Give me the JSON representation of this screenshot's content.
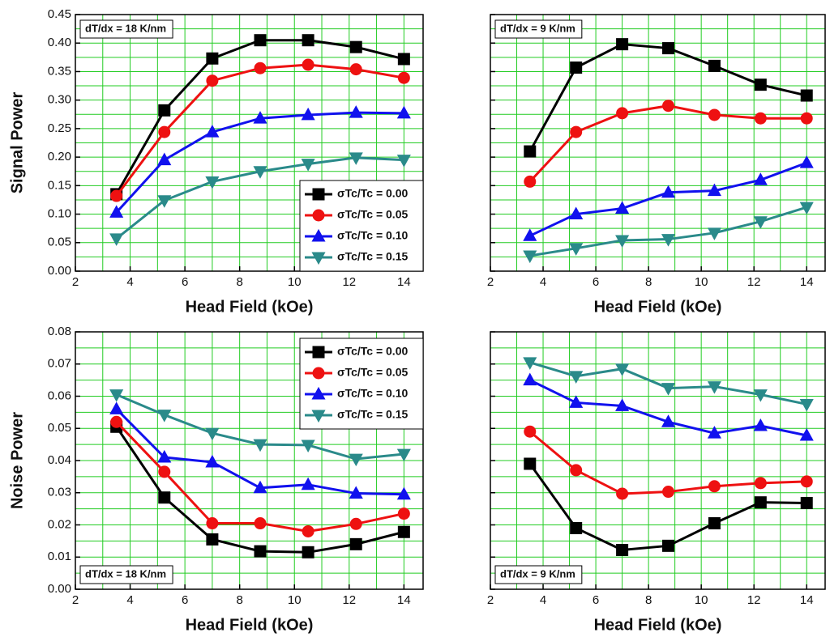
{
  "chart_data": [
    {
      "type": "line",
      "ylabel": "Signal Power",
      "xlabel": "Head Field (kOe)",
      "annotation": "dT/dx = 18 K/nm",
      "annotation_corner": "upper left",
      "x": [
        3.5,
        5.25,
        7,
        8.75,
        10.5,
        12.25,
        14
      ],
      "series": [
        {
          "name": "σTc/Tc = 0.00",
          "color": "#000000",
          "marker": "square",
          "values": [
            0.135,
            0.282,
            0.373,
            0.405,
            0.405,
            0.393,
            0.372
          ]
        },
        {
          "name": "σTc/Tc = 0.05",
          "color": "#ee1111",
          "marker": "circle",
          "values": [
            0.132,
            0.244,
            0.334,
            0.356,
            0.362,
            0.354,
            0.339
          ]
        },
        {
          "name": "σTc/Tc = 0.10",
          "color": "#1111ee",
          "marker": "triangle-up",
          "values": [
            0.103,
            0.195,
            0.244,
            0.268,
            0.274,
            0.278,
            0.277
          ]
        },
        {
          "name": "σTc/Tc = 0.15",
          "color": "#2a8a8a",
          "marker": "triangle-down",
          "values": [
            0.057,
            0.124,
            0.157,
            0.175,
            0.188,
            0.199,
            0.195
          ]
        }
      ],
      "xlim": [
        2,
        14.7
      ],
      "ylim": [
        0,
        0.45
      ],
      "xticks": [
        2,
        4,
        6,
        8,
        10,
        12,
        14
      ],
      "yticks": [
        {
          "value": 0,
          "label": "0.00"
        },
        0.05,
        {
          "value": 0.1,
          "label": "0.10"
        },
        0.15,
        {
          "value": 0.2,
          "label": "0.20"
        },
        0.25,
        {
          "value": 0.3,
          "label": "0.30"
        },
        0.35,
        {
          "value": 0.4,
          "label": "0.40"
        },
        0.45
      ],
      "show_ytick_labels": true,
      "grid": true,
      "grid_color": "#22cc22",
      "legend": "lower right"
    },
    {
      "type": "line",
      "xlabel": "Head Field (kOe)",
      "annotation": "dT/dx = 9 K/nm",
      "annotation_corner": "upper left",
      "x": [
        3.5,
        5.25,
        7,
        8.75,
        10.5,
        12.25,
        14
      ],
      "series": [
        {
          "color": "#000000",
          "marker": "square",
          "values": [
            0.21,
            0.357,
            0.398,
            0.391,
            0.36,
            0.327,
            0.308
          ]
        },
        {
          "color": "#ee1111",
          "marker": "circle",
          "values": [
            0.157,
            0.244,
            0.277,
            0.29,
            0.274,
            0.268,
            0.268
          ]
        },
        {
          "color": "#1111ee",
          "marker": "triangle-up",
          "values": [
            0.062,
            0.1,
            0.11,
            0.138,
            0.141,
            0.16,
            0.19
          ]
        },
        {
          "color": "#2a8a8a",
          "marker": "triangle-down",
          "values": [
            0.027,
            0.04,
            0.054,
            0.056,
            0.067,
            0.087,
            0.112
          ]
        }
      ],
      "xlim": [
        2,
        14.7
      ],
      "ylim": [
        0,
        0.45
      ],
      "xticks": [
        2,
        4,
        6,
        8,
        10,
        12,
        14
      ],
      "yticks": [
        0,
        0.05,
        0.1,
        0.15,
        0.2,
        0.25,
        0.3,
        0.35,
        0.4,
        0.45
      ],
      "show_ytick_labels": false,
      "grid": true,
      "grid_color": "#22cc22",
      "legend": false
    },
    {
      "type": "line",
      "ylabel": "Noise Power",
      "xlabel": "Head Field (kOe)",
      "annotation": "dT/dx = 18 K/nm",
      "annotation_corner": "lower left",
      "x": [
        3.5,
        5.25,
        7,
        8.75,
        10.5,
        12.25,
        14
      ],
      "series": [
        {
          "name": "σTc/Tc = 0.00",
          "color": "#000000",
          "marker": "square",
          "values": [
            0.0505,
            0.0285,
            0.0155,
            0.0118,
            0.0115,
            0.014,
            0.0178
          ]
        },
        {
          "name": "σTc/Tc = 0.05",
          "color": "#ee1111",
          "marker": "circle",
          "values": [
            0.052,
            0.0365,
            0.0205,
            0.0205,
            0.018,
            0.0203,
            0.0235
          ]
        },
        {
          "name": "σTc/Tc = 0.10",
          "color": "#1111ee",
          "marker": "triangle-up",
          "values": [
            0.056,
            0.041,
            0.0395,
            0.0315,
            0.0325,
            0.0298,
            0.0295
          ]
        },
        {
          "name": "σTc/Tc = 0.15",
          "color": "#2a8a8a",
          "marker": "triangle-down",
          "values": [
            0.0605,
            0.0542,
            0.0485,
            0.045,
            0.0448,
            0.0405,
            0.042
          ]
        }
      ],
      "xlim": [
        2,
        14.7
      ],
      "ylim": [
        0,
        0.08
      ],
      "xticks": [
        2,
        4,
        6,
        8,
        10,
        12,
        14
      ],
      "yticks": [
        {
          "value": 0,
          "label": "0.00"
        },
        0.01,
        0.02,
        0.03,
        0.04,
        0.05,
        0.06,
        0.07,
        0.08
      ],
      "show_ytick_labels": true,
      "grid": true,
      "grid_color": "#22cc22",
      "legend": "upper right"
    },
    {
      "type": "line",
      "xlabel": "Head Field (kOe)",
      "annotation": "dT/dx = 9 K/nm",
      "annotation_corner": "lower left",
      "x": [
        3.5,
        5.25,
        7,
        8.75,
        10.5,
        12.25,
        14
      ],
      "series": [
        {
          "color": "#000000",
          "marker": "square",
          "values": [
            0.039,
            0.019,
            0.0122,
            0.0135,
            0.0205,
            0.027,
            0.0268
          ]
        },
        {
          "color": "#ee1111",
          "marker": "circle",
          "values": [
            0.049,
            0.037,
            0.0297,
            0.0303,
            0.032,
            0.033,
            0.0335
          ]
        },
        {
          "color": "#1111ee",
          "marker": "triangle-up",
          "values": [
            0.065,
            0.058,
            0.057,
            0.052,
            0.0485,
            0.0508,
            0.0478
          ]
        },
        {
          "color": "#2a8a8a",
          "marker": "triangle-down",
          "values": [
            0.0705,
            0.0662,
            0.0685,
            0.0625,
            0.063,
            0.0605,
            0.0575
          ]
        }
      ],
      "xlim": [
        2,
        14.7
      ],
      "ylim": [
        0,
        0.08
      ],
      "xticks": [
        2,
        4,
        6,
        8,
        10,
        12,
        14
      ],
      "yticks": [
        0,
        0.01,
        0.02,
        0.03,
        0.04,
        0.05,
        0.06,
        0.07,
        0.08
      ],
      "show_ytick_labels": false,
      "grid": true,
      "grid_color": "#22cc22",
      "legend": false
    }
  ]
}
